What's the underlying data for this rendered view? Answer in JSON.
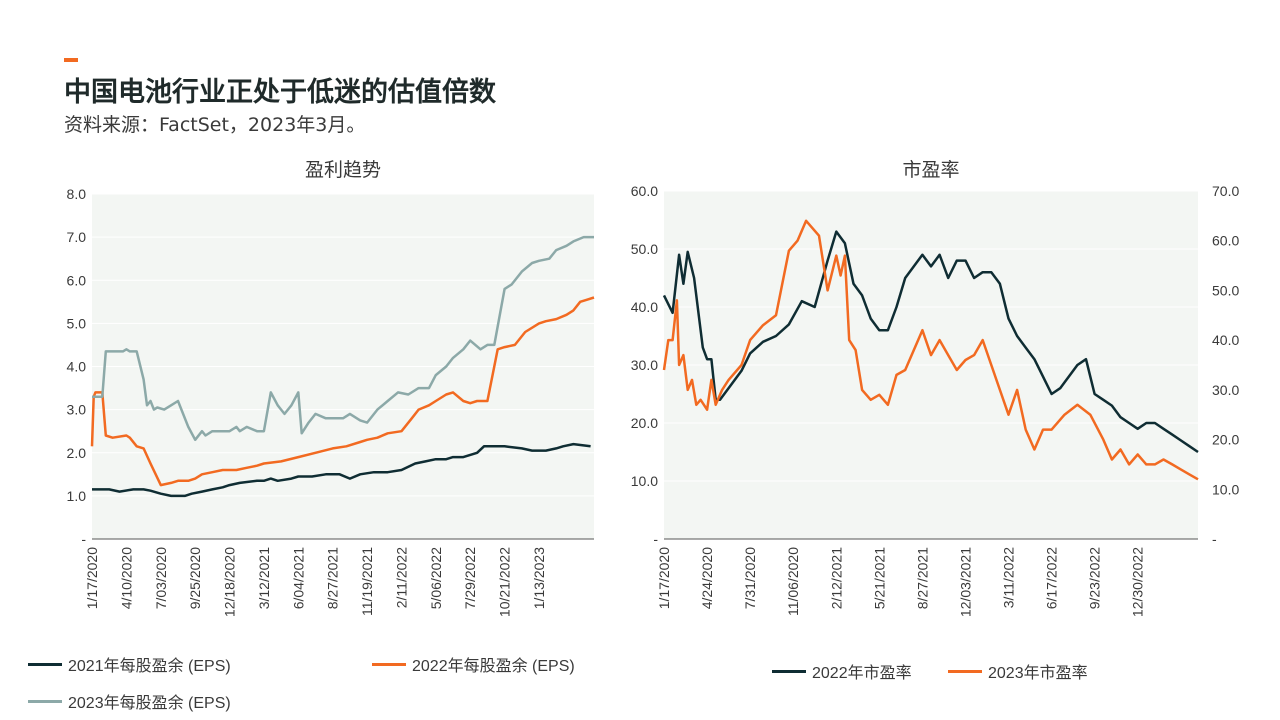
{
  "header": {
    "title": "中国电池行业正处于低迷的估值倍数",
    "subtitle": "资料来源：FactSet，2023年3月。"
  },
  "colors": {
    "eps2021": "#0f2d33",
    "eps2022": "#f26a21",
    "eps2023": "#8ca9a8",
    "pe2022": "#0f2d33",
    "pe2023": "#f26a21",
    "plot_bg": "#f3f6f3"
  },
  "chart_data": [
    {
      "type": "line",
      "title": "盈利趋势",
      "ylim": [
        0,
        8
      ],
      "yticks": [
        "-",
        "1.0",
        "2.0",
        "3.0",
        "4.0",
        "5.0",
        "6.0",
        "7.0",
        "8.0"
      ],
      "xticks": [
        "1/17/2020",
        "4/10/2020",
        "7/03/2020",
        "9/25/2020",
        "12/18/2020",
        "3/12/2021",
        "6/04/2021",
        "8/27/2021",
        "11/19/2021",
        "2/11/2022",
        "5/06/2022",
        "7/29/2022",
        "10/21/2022",
        "1/13/2023"
      ],
      "xrange": [
        0,
        14.6
      ],
      "legend": "bottom",
      "series": [
        {
          "name": "2021年每股盈余 (EPS)",
          "x": [
            0,
            0.3,
            0.5,
            0.8,
            1.2,
            1.5,
            1.7,
            2.0,
            2.3,
            2.5,
            2.7,
            2.9,
            3.2,
            3.5,
            3.8,
            4.0,
            4.3,
            4.8,
            5.0,
            5.2,
            5.4,
            5.8,
            6.0,
            6.4,
            6.8,
            7.2,
            7.5,
            7.8,
            8.2,
            8.6,
            9.0,
            9.4,
            9.7,
            10.0,
            10.3,
            10.5,
            10.8,
            11.2,
            11.4,
            11.7,
            12.0,
            12.5,
            12.8,
            13.2,
            13.5,
            13.7,
            14.0,
            14.5
          ],
          "values": [
            1.15,
            1.15,
            1.15,
            1.1,
            1.15,
            1.15,
            1.12,
            1.05,
            1.0,
            1.0,
            1.0,
            1.05,
            1.1,
            1.15,
            1.2,
            1.25,
            1.3,
            1.35,
            1.35,
            1.4,
            1.35,
            1.4,
            1.45,
            1.45,
            1.5,
            1.5,
            1.4,
            1.5,
            1.55,
            1.55,
            1.6,
            1.75,
            1.8,
            1.85,
            1.85,
            1.9,
            1.9,
            2.0,
            2.15,
            2.15,
            2.15,
            2.1,
            2.05,
            2.05,
            2.1,
            2.15,
            2.2,
            2.15
          ]
        },
        {
          "name": "2022年每股盈余 (EPS)",
          "x": [
            0,
            0.05,
            0.1,
            0.3,
            0.4,
            0.6,
            1.0,
            1.1,
            1.3,
            1.5,
            1.7,
            2.0,
            2.3,
            2.5,
            2.8,
            3.0,
            3.2,
            3.5,
            3.8,
            4.0,
            4.2,
            4.5,
            4.8,
            5.0,
            5.5,
            6.0,
            6.5,
            7.0,
            7.4,
            7.8,
            8.0,
            8.3,
            8.6,
            9.0,
            9.3,
            9.5,
            9.8,
            10.0,
            10.3,
            10.5,
            10.8,
            11.0,
            11.2,
            11.5,
            11.8,
            12.0,
            12.3,
            12.6,
            13.0,
            13.2,
            13.5,
            13.8,
            14.0,
            14.2,
            14.4,
            14.6
          ],
          "values": [
            2.15,
            3.3,
            3.4,
            3.4,
            2.4,
            2.35,
            2.4,
            2.35,
            2.15,
            2.1,
            1.75,
            1.25,
            1.3,
            1.35,
            1.35,
            1.4,
            1.5,
            1.55,
            1.6,
            1.6,
            1.6,
            1.65,
            1.7,
            1.75,
            1.8,
            1.9,
            2.0,
            2.1,
            2.15,
            2.25,
            2.3,
            2.35,
            2.45,
            2.5,
            2.8,
            3.0,
            3.1,
            3.2,
            3.35,
            3.4,
            3.2,
            3.15,
            3.2,
            3.2,
            4.4,
            4.45,
            4.5,
            4.8,
            5.0,
            5.05,
            5.1,
            5.2,
            5.3,
            5.5,
            5.55,
            5.6
          ]
        },
        {
          "name": "2023年每股盈余 (EPS)",
          "x": [
            0,
            0.3,
            0.4,
            0.5,
            0.9,
            1.0,
            1.1,
            1.3,
            1.5,
            1.6,
            1.7,
            1.8,
            1.9,
            2.1,
            2.3,
            2.5,
            2.8,
            3.0,
            3.2,
            3.3,
            3.5,
            3.7,
            4.0,
            4.2,
            4.3,
            4.5,
            4.8,
            5.0,
            5.2,
            5.4,
            5.5,
            5.6,
            5.8,
            6.0,
            6.1,
            6.3,
            6.5,
            6.8,
            7.0,
            7.3,
            7.5,
            7.8,
            8.0,
            8.3,
            8.6,
            8.9,
            9.2,
            9.5,
            9.8,
            10.0,
            10.3,
            10.5,
            10.8,
            11.0,
            11.3,
            11.5,
            11.7,
            12.0,
            12.2,
            12.5,
            12.8,
            13.0,
            13.3,
            13.5,
            13.8,
            14.0,
            14.3,
            14.6
          ],
          "values": [
            3.3,
            3.3,
            4.35,
            4.35,
            4.35,
            4.4,
            4.35,
            4.35,
            3.7,
            3.1,
            3.2,
            3.0,
            3.05,
            3.0,
            3.1,
            3.2,
            2.6,
            2.3,
            2.5,
            2.4,
            2.5,
            2.5,
            2.5,
            2.6,
            2.5,
            2.6,
            2.5,
            2.5,
            3.4,
            3.1,
            3.0,
            2.9,
            3.1,
            3.4,
            2.45,
            2.7,
            2.9,
            2.8,
            2.8,
            2.8,
            2.9,
            2.75,
            2.7,
            3.0,
            3.2,
            3.4,
            3.35,
            3.5,
            3.5,
            3.8,
            4.0,
            4.2,
            4.4,
            4.6,
            4.4,
            4.5,
            4.5,
            5.8,
            5.9,
            6.2,
            6.4,
            6.45,
            6.5,
            6.7,
            6.8,
            6.9,
            7.0,
            7.0
          ]
        }
      ]
    },
    {
      "type": "line",
      "title": "市盈率",
      "ylim": [
        0,
        60
      ],
      "ylim_right": [
        0,
        70
      ],
      "yticks": [
        "-",
        "10.0",
        "20.0",
        "30.0",
        "40.0",
        "50.0",
        "60.0"
      ],
      "yticks_right": [
        "-",
        "10.0",
        "20.0",
        "30.0",
        "40.0",
        "50.0",
        "60.0",
        "70.0"
      ],
      "xticks": [
        "1/17/2020",
        "4/24/2020",
        "7/31/2020",
        "11/06/2020",
        "2/12/2021",
        "5/21/2021",
        "8/27/2021",
        "12/03/2021",
        "3/11/2022",
        "6/17/2022",
        "9/23/2022",
        "12/30/2022"
      ],
      "xrange": [
        0,
        12.4
      ],
      "legend": "bottom",
      "series": [
        {
          "name": "2022年市盈率",
          "axis": "left",
          "x": [
            0,
            0.2,
            0.35,
            0.45,
            0.55,
            0.7,
            0.9,
            1.0,
            1.1,
            1.2,
            1.3,
            1.6,
            1.8,
            2.0,
            2.3,
            2.6,
            2.9,
            3.2,
            3.5,
            3.8,
            4.0,
            4.2,
            4.4,
            4.6,
            4.7,
            4.8,
            5.0,
            5.2,
            5.4,
            5.6,
            5.8,
            6.0,
            6.2,
            6.4,
            6.6,
            6.8,
            7.0,
            7.2,
            7.4,
            7.6,
            7.8,
            8.0,
            8.2,
            8.4,
            8.6,
            8.8,
            9.0,
            9.2,
            9.4,
            9.6,
            9.8,
            10.0,
            10.2,
            10.4,
            10.6,
            10.8,
            11.0,
            11.2,
            11.4,
            11.6,
            11.8,
            12.0,
            12.2,
            12.4
          ],
          "values": [
            42,
            39,
            49,
            44,
            49.5,
            45,
            33,
            31,
            31,
            24,
            24,
            27,
            29,
            32,
            34,
            35,
            37,
            41,
            40,
            48,
            53,
            51,
            44,
            42,
            40,
            38,
            36,
            36,
            40,
            45,
            47,
            49,
            47,
            49,
            45,
            48,
            48,
            45,
            46,
            46,
            44,
            38,
            35,
            33,
            31,
            28,
            25,
            26,
            28,
            30,
            31,
            25,
            24,
            23,
            21,
            20,
            19,
            20,
            20,
            19,
            18,
            17,
            16,
            15
          ]
        },
        {
          "name": "2023年市盈率",
          "axis": "right",
          "x": [
            0,
            0.1,
            0.2,
            0.3,
            0.35,
            0.45,
            0.55,
            0.65,
            0.75,
            0.85,
            1.0,
            1.1,
            1.2,
            1.35,
            1.5,
            1.8,
            2.0,
            2.3,
            2.6,
            2.9,
            3.1,
            3.3,
            3.6,
            3.8,
            4.0,
            4.1,
            4.2,
            4.3,
            4.45,
            4.6,
            4.8,
            5.0,
            5.2,
            5.4,
            5.6,
            5.8,
            6.0,
            6.2,
            6.4,
            6.6,
            6.8,
            7.0,
            7.2,
            7.4,
            7.6,
            7.8,
            8.0,
            8.2,
            8.4,
            8.6,
            8.8,
            9.0,
            9.3,
            9.6,
            9.9,
            10.2,
            10.4,
            10.6,
            10.8,
            11.0,
            11.2,
            11.4,
            11.6,
            11.8,
            12.0,
            12.2,
            12.4
          ],
          "values": [
            34,
            40,
            40,
            48,
            35,
            37,
            30,
            32,
            27,
            28,
            26,
            32,
            27,
            30,
            32,
            35,
            40,
            43,
            45,
            58,
            60,
            64,
            61,
            50,
            57,
            53,
            57,
            40,
            38,
            30,
            28,
            29,
            27,
            33,
            34,
            38,
            42,
            37,
            40,
            37,
            34,
            36,
            37,
            40,
            35,
            30,
            25,
            30,
            22,
            18,
            22,
            22,
            25,
            27,
            25,
            20,
            16,
            18,
            15,
            17,
            15,
            15,
            16,
            15,
            14,
            13,
            12
          ]
        }
      ]
    }
  ]
}
